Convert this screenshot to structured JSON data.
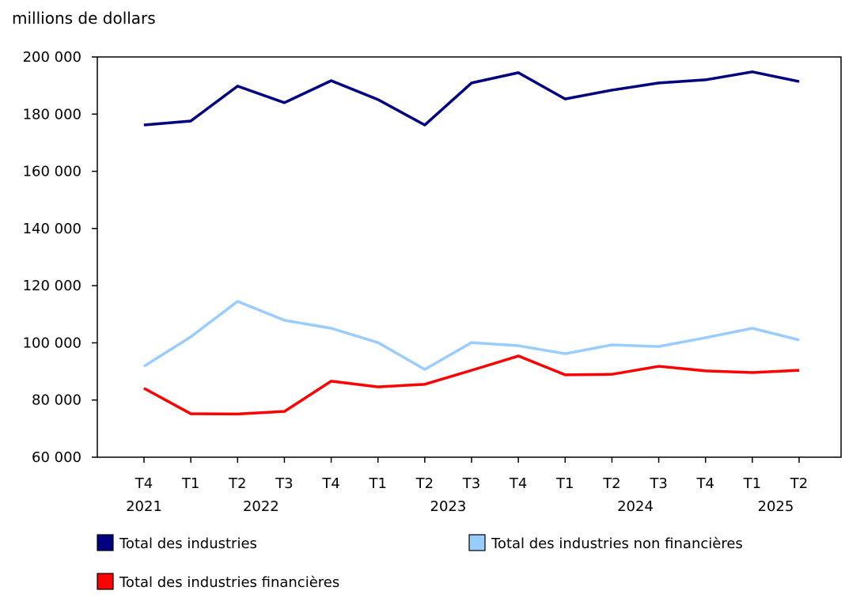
{
  "chart_data": {
    "type": "line",
    "ylabel": "millions de dollars",
    "ylim": [
      60000,
      200000
    ],
    "yticks": [
      60000,
      80000,
      100000,
      120000,
      140000,
      160000,
      180000,
      200000
    ],
    "ytick_labels": [
      "60 000",
      "80 000",
      "100 000",
      "120 000",
      "140 000",
      "160 000",
      "180 000",
      "200 000"
    ],
    "categories": [
      "T4",
      "T1",
      "T2",
      "T3",
      "T4",
      "T1",
      "T2",
      "T3",
      "T4",
      "T1",
      "T2",
      "T3",
      "T4",
      "T1",
      "T2"
    ],
    "year_labels": [
      {
        "label": "2021",
        "center_index": 0
      },
      {
        "label": "2022",
        "center_index": 2.5
      },
      {
        "label": "2023",
        "center_index": 6.5
      },
      {
        "label": "2024",
        "center_index": 10.5
      },
      {
        "label": "2025",
        "center_index": 13.5
      }
    ],
    "grid": false,
    "legend_placement": "bottom",
    "series": [
      {
        "name": "Total des industries",
        "color": "#000080",
        "values": [
          176200,
          177600,
          189800,
          184000,
          191700,
          185100,
          176200,
          190900,
          194500,
          185300,
          188400,
          190900,
          192000,
          194800,
          191400
        ]
      },
      {
        "name": "Total des industries non financières",
        "color": "#99ccff",
        "values": [
          91800,
          102100,
          114500,
          107900,
          105100,
          100100,
          90700,
          100100,
          99000,
          96200,
          99300,
          98700,
          101800,
          105100,
          101000
        ]
      },
      {
        "name": "Total des industries financières",
        "color": "#ff0000",
        "values": [
          84100,
          75200,
          75100,
          76000,
          86600,
          84600,
          85500,
          90400,
          95400,
          88800,
          89000,
          91800,
          90200,
          89600,
          90400
        ]
      }
    ]
  }
}
